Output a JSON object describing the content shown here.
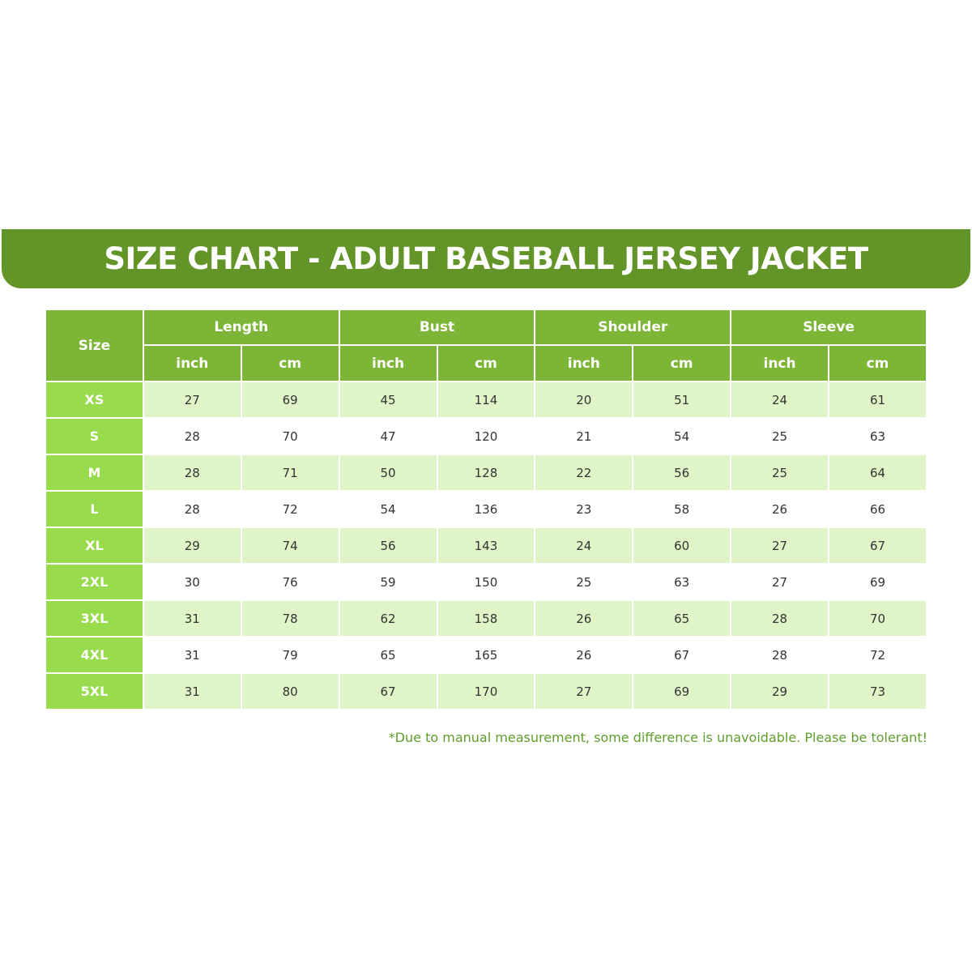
{
  "banner": {
    "title": "SIZE CHART - ADULT BASEBALL JERSEY JACKET"
  },
  "colors": {
    "banner": "#639428",
    "header": "#7db537",
    "size_col": "#98db4c",
    "row_shade": "#dff5c7",
    "footnote": "#5f9e2c"
  },
  "table": {
    "size_header": "Size",
    "groups": [
      "Length",
      "Bust",
      "Shoulder",
      "Sleeve"
    ],
    "units": [
      "inch",
      "cm",
      "inch",
      "cm",
      "inch",
      "cm",
      "inch",
      "cm"
    ],
    "rows": [
      {
        "size": "XS",
        "values": [
          "27",
          "69",
          "45",
          "114",
          "20",
          "51",
          "24",
          "61"
        ]
      },
      {
        "size": "S",
        "values": [
          "28",
          "70",
          "47",
          "120",
          "21",
          "54",
          "25",
          "63"
        ]
      },
      {
        "size": "M",
        "values": [
          "28",
          "71",
          "50",
          "128",
          "22",
          "56",
          "25",
          "64"
        ]
      },
      {
        "size": "L",
        "values": [
          "28",
          "72",
          "54",
          "136",
          "23",
          "58",
          "26",
          "66"
        ]
      },
      {
        "size": "XL",
        "values": [
          "29",
          "74",
          "56",
          "143",
          "24",
          "60",
          "27",
          "67"
        ]
      },
      {
        "size": "2XL",
        "values": [
          "30",
          "76",
          "59",
          "150",
          "25",
          "63",
          "27",
          "69"
        ]
      },
      {
        "size": "3XL",
        "values": [
          "31",
          "78",
          "62",
          "158",
          "26",
          "65",
          "28",
          "70"
        ]
      },
      {
        "size": "4XL",
        "values": [
          "31",
          "79",
          "65",
          "165",
          "26",
          "67",
          "28",
          "72"
        ]
      },
      {
        "size": "5XL",
        "values": [
          "31",
          "80",
          "67",
          "170",
          "27",
          "69",
          "29",
          "73"
        ]
      }
    ]
  },
  "footnote": "*Due to manual measurement, some difference is unavoidable. Please be tolerant!"
}
